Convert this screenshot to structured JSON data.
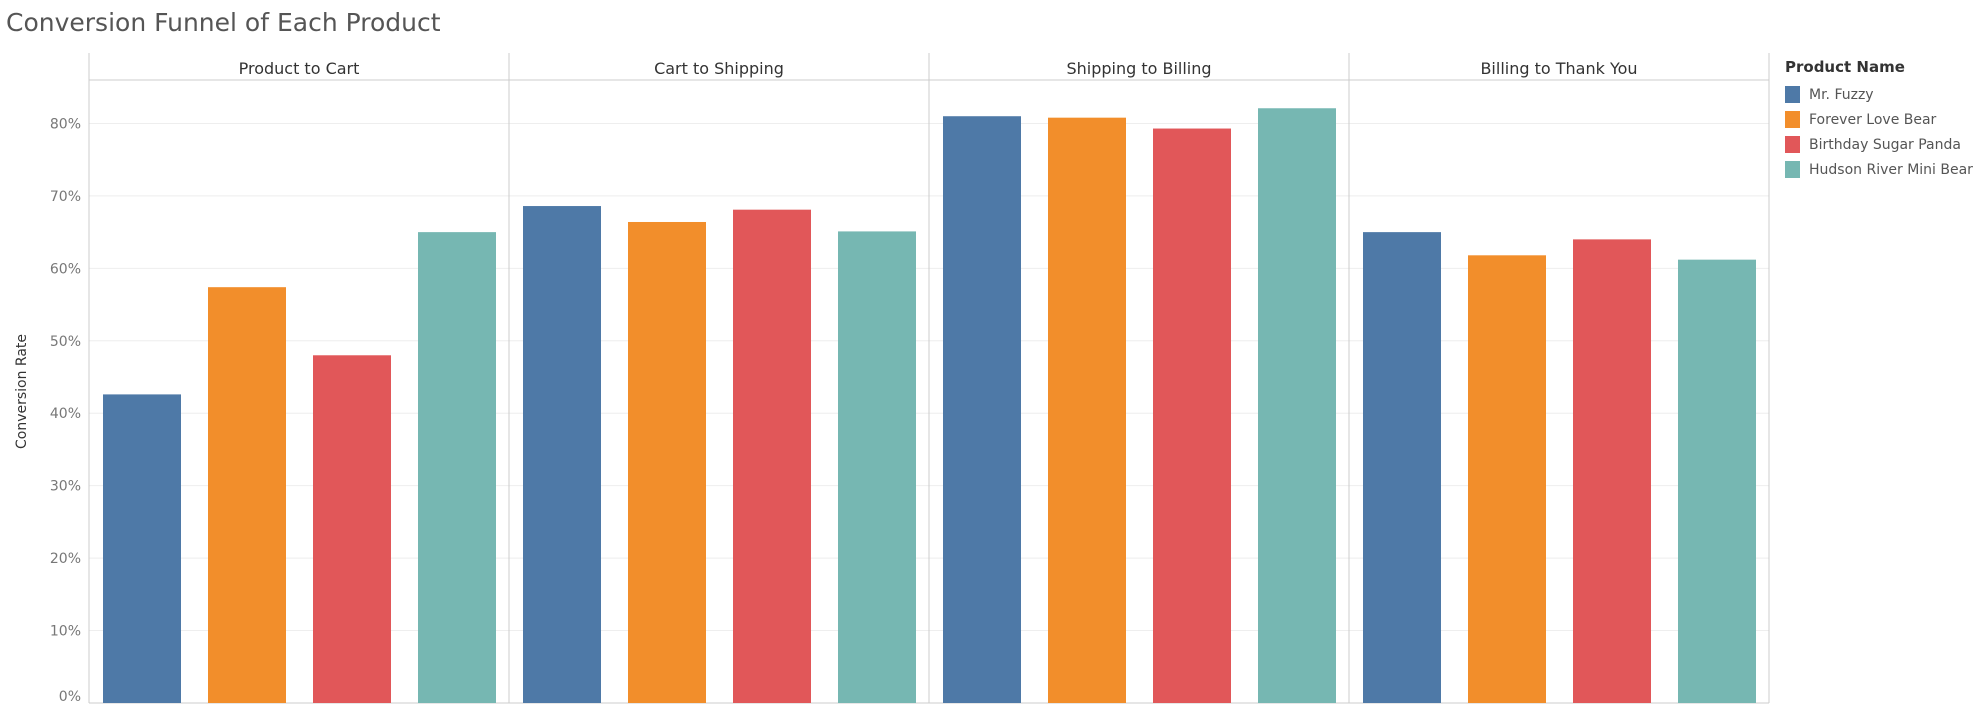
{
  "chart_data": {
    "type": "bar",
    "title": "Conversion Funnel of Each Product",
    "ylabel": "Conversion Rate",
    "xlabel": "",
    "ylim": [
      0,
      86
    ],
    "yticks": [
      "0%",
      "10%",
      "20%",
      "30%",
      "40%",
      "50%",
      "60%",
      "70%",
      "80%"
    ],
    "panels": [
      "Product to Cart",
      "Cart to Shipping",
      "Shipping to Billing",
      "Billing to Thank You"
    ],
    "legend_title": "Product Name",
    "legend_position": "right",
    "grid": true,
    "series": [
      {
        "name": "Mr. Fuzzy",
        "color": "#4e79a7",
        "values": [
          42.6,
          68.6,
          81.0,
          65.0
        ]
      },
      {
        "name": "Forever Love Bear",
        "color": "#f28e2b",
        "values": [
          57.4,
          66.4,
          80.8,
          61.8
        ]
      },
      {
        "name": "Birthday Sugar Panda",
        "color": "#e15759",
        "values": [
          48.0,
          68.1,
          79.3,
          64.0
        ]
      },
      {
        "name": "Hudson River Mini Bear",
        "color": "#76b7b2",
        "values": [
          65.0,
          65.1,
          82.1,
          61.2
        ]
      }
    ]
  }
}
